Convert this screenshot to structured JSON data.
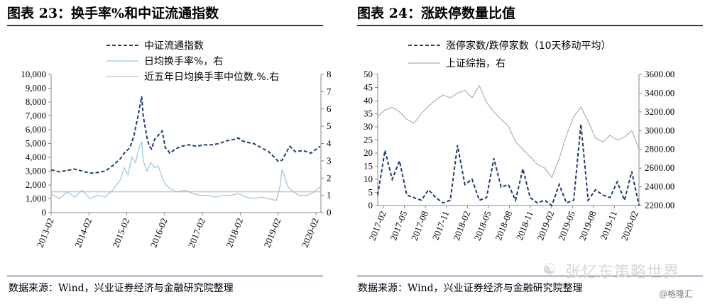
{
  "left_panel": {
    "title": "图表 23：换手率%和中证流通指数",
    "source": "数据来源：Wind，兴业证券经济与金融研究院整理"
  },
  "right_panel": {
    "title": "图表 24：涨跌停数量比值",
    "source": "数据来源：Wind，兴业证券经济与金融研究院整理"
  },
  "watermark": {
    "text": "张忆东策略世界",
    "icon": "wechat-icon"
  },
  "brand": "@格隆汇",
  "colors": {
    "navy": "#1f3d6e",
    "light_blue": "#9ec3e0",
    "gray": "#b0b0b0",
    "axis": "#888888"
  },
  "chart_data": [
    {
      "type": "line",
      "legend": [
        "中证流通指数",
        "日均换手率%，右",
        "近五年日均换手率中位数.%.右"
      ],
      "x_ticks": [
        "2013-02",
        "2014-02",
        "2015-02",
        "2016-02",
        "2017-02",
        "2018-02",
        "2019-02",
        "2020-02"
      ],
      "y_left_ticks": [
        "0",
        "1,000",
        "2,000",
        "3,000",
        "4,000",
        "5,000",
        "6,000",
        "7,000",
        "8,000",
        "9,000",
        "10,000"
      ],
      "y_right_ticks": [
        "0",
        "1",
        "2",
        "3",
        "4",
        "5",
        "6",
        "7",
        "8"
      ],
      "ylim_left": [
        0,
        10000
      ],
      "ylim_right": [
        0,
        8
      ],
      "series": [
        {
          "name": "中证流通指数",
          "axis": "left",
          "style": "dashed",
          "x": [
            2013.08,
            2013.3,
            2013.5,
            2013.7,
            2013.9,
            2014.1,
            2014.3,
            2014.5,
            2014.7,
            2014.9,
            2015.0,
            2015.15,
            2015.25,
            2015.35,
            2015.42,
            2015.46,
            2015.5,
            2015.55,
            2015.6,
            2015.66,
            2015.72,
            2015.8,
            2015.9,
            2016.0,
            2016.08,
            2016.15,
            2016.2,
            2016.35,
            2016.5,
            2016.7,
            2016.9,
            2017.1,
            2017.3,
            2017.5,
            2017.7,
            2017.9,
            2018.0,
            2018.1,
            2018.2,
            2018.4,
            2018.6,
            2018.8,
            2018.95,
            2019.05,
            2019.15,
            2019.25,
            2019.35,
            2019.5,
            2019.7,
            2019.9,
            2020.05,
            2020.15
          ],
          "y": [
            3100,
            2950,
            3050,
            3150,
            3000,
            2850,
            2900,
            3000,
            3400,
            3900,
            4300,
            4700,
            5500,
            6800,
            7800,
            8400,
            7000,
            6200,
            5400,
            4800,
            4600,
            5300,
            5600,
            5900,
            4700,
            4500,
            4300,
            4600,
            4800,
            4900,
            4800,
            4900,
            4900,
            5000,
            5200,
            5300,
            5400,
            5200,
            5100,
            5000,
            4700,
            4400,
            4000,
            3700,
            3800,
            4300,
            4800,
            4400,
            4500,
            4300,
            4600,
            4800
          ]
        },
        {
          "name": "日均换手率%，右",
          "axis": "right",
          "style": "solid",
          "x": [
            2013.08,
            2013.3,
            2013.5,
            2013.7,
            2013.9,
            2014.1,
            2014.3,
            2014.5,
            2014.7,
            2014.9,
            2015.0,
            2015.1,
            2015.2,
            2015.3,
            2015.4,
            2015.46,
            2015.5,
            2015.6,
            2015.7,
            2015.8,
            2015.9,
            2016.0,
            2016.1,
            2016.2,
            2016.4,
            2016.6,
            2016.8,
            2017.0,
            2017.2,
            2017.4,
            2017.6,
            2017.8,
            2018.0,
            2018.2,
            2018.4,
            2018.6,
            2018.8,
            2019.0,
            2019.1,
            2019.15,
            2019.2,
            2019.3,
            2019.45,
            2019.6,
            2019.8,
            2020.0,
            2020.15
          ],
          "y": [
            1.1,
            0.8,
            1.2,
            0.9,
            1.3,
            0.8,
            1.0,
            0.9,
            1.3,
            1.9,
            2.6,
            2.2,
            3.2,
            2.9,
            3.8,
            4.1,
            3.0,
            2.4,
            2.9,
            2.6,
            2.7,
            2.0,
            1.6,
            1.4,
            1.2,
            1.3,
            1.1,
            1.0,
            1.0,
            0.9,
            1.0,
            1.0,
            1.1,
            0.9,
            0.8,
            0.9,
            0.8,
            0.7,
            1.6,
            2.5,
            2.2,
            1.5,
            1.2,
            1.0,
            1.0,
            1.2,
            1.5
          ]
        },
        {
          "name": "近五年日均换手率中位数.%.右",
          "axis": "right",
          "style": "solid",
          "x": [
            2013.08,
            2020.15
          ],
          "y": [
            1.2,
            1.2
          ]
        }
      ]
    },
    {
      "type": "line",
      "legend": [
        "涨停家数/跌停家数（10天移动平均）",
        "上证综指，右"
      ],
      "x_ticks": [
        "2017-02",
        "2017-05",
        "2017-08",
        "2017-11",
        "2018-02",
        "2018-05",
        "2018-08",
        "2018-11",
        "2019-02",
        "2019-05",
        "2019-08",
        "2019-11",
        "2020-02"
      ],
      "y_left_ticks": [
        "0",
        "5",
        "10",
        "15",
        "20",
        "25",
        "30",
        "35",
        "40",
        "45",
        "50"
      ],
      "y_right_ticks": [
        "2200.00",
        "2400.00",
        "2600.00",
        "2800.00",
        "3000.00",
        "3200.00",
        "3400.00",
        "3600.00"
      ],
      "ylim_left": [
        0,
        50
      ],
      "ylim_right": [
        2200,
        3600
      ],
      "series": [
        {
          "name": "涨停家数/跌停家数（10天移动平均）",
          "axis": "left",
          "style": "dashed",
          "x": [
            0,
            1,
            2,
            3,
            4,
            5,
            6,
            7,
            8,
            9,
            10,
            11,
            12,
            13,
            14,
            15,
            16,
            17,
            18,
            19,
            20,
            21,
            22,
            23,
            24,
            25,
            26,
            27,
            28,
            29,
            30,
            31,
            32,
            33,
            34,
            35,
            36
          ],
          "y": [
            4,
            21,
            10,
            17,
            4,
            3,
            2,
            6,
            3,
            1,
            2,
            23,
            8,
            10,
            2,
            3,
            18,
            7,
            8,
            2,
            14,
            3,
            1,
            2,
            0,
            8,
            1,
            2,
            31,
            2,
            6,
            4,
            3,
            9,
            2,
            13,
            0
          ]
        },
        {
          "name": "上证综指，右",
          "axis": "right",
          "style": "solid",
          "x": [
            0,
            1,
            2,
            3,
            4,
            5,
            6,
            7,
            8,
            9,
            10,
            11,
            12,
            13,
            14,
            15,
            16,
            17,
            18,
            19,
            20,
            21,
            22,
            23,
            24,
            25,
            26,
            27,
            28,
            29,
            30,
            31,
            32,
            33,
            34,
            35,
            36
          ],
          "y": [
            3150,
            3220,
            3250,
            3200,
            3120,
            3080,
            3180,
            3260,
            3330,
            3380,
            3350,
            3400,
            3430,
            3350,
            3480,
            3300,
            3200,
            3120,
            3050,
            2880,
            2800,
            2720,
            2640,
            2600,
            2500,
            2700,
            2950,
            3150,
            3250,
            3100,
            2920,
            2880,
            2950,
            2900,
            2930,
            3000,
            2800
          ]
        }
      ]
    }
  ]
}
